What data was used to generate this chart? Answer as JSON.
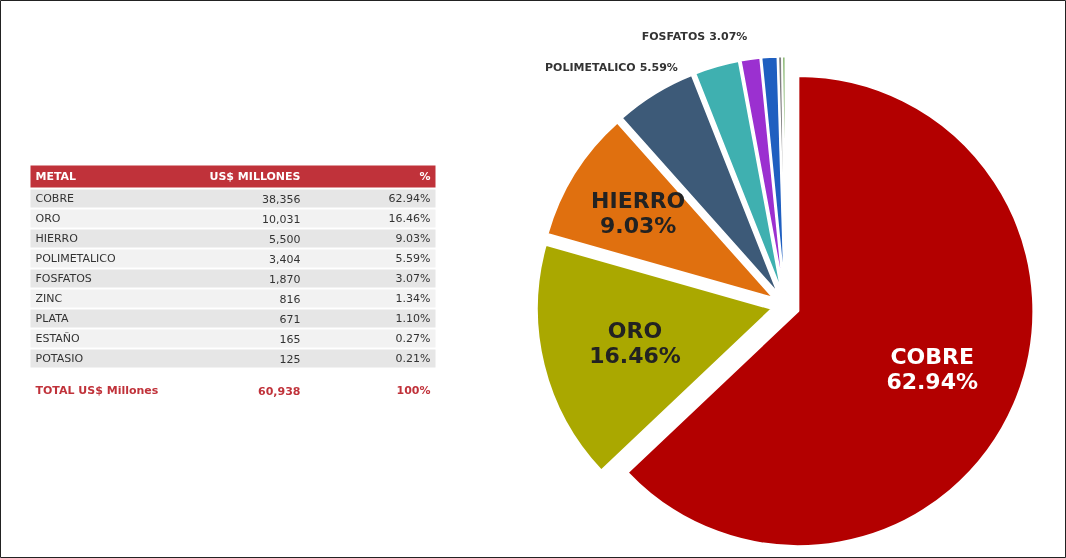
{
  "chart_data": [
    {
      "type": "other",
      "annotations": [
        "METAL",
        "US$ MILLONES",
        "%",
        "COBRE",
        "38,356",
        "62.94%",
        "ORO",
        "10,031",
        "16.46%",
        "HIERRO",
        "5,500",
        "9.03%",
        "POLIMETALICO",
        "3,404",
        "5.59%",
        "FOSFATOS",
        "1,870",
        "3.07%",
        "ZINC",
        "816",
        "1.34%",
        "PLATA",
        "671",
        "1.10%",
        "ESTAÑO",
        "165",
        "0.27%",
        "POTASIO",
        "125",
        "0.21%",
        "TOTAL US$ Millones",
        "60,938",
        "100%"
      ]
    },
    {
      "type": "pie",
      "categories": [
        "COBRE",
        "ORO",
        "HIERRO",
        "POLIMETALICO",
        "FOSFATOS",
        null,
        null,
        null,
        null
      ],
      "values": [
        62.94,
        16.46,
        9.03,
        5.59,
        3.07,
        1.34,
        1.1,
        0.27,
        0.21
      ],
      "value_labels": [
        "62.94%",
        "16.46%",
        "9.03%",
        "5.59%",
        "3.07%",
        null,
        null,
        null,
        null
      ],
      "colors": [
        "#b30000",
        "#aaa800",
        "#e0700f",
        "#3d5a78",
        "#3fb0b0",
        "#9b30d0",
        "#1f5fc0",
        "#7f7f7f",
        "#5a9a3a"
      ]
    }
  ]
}
